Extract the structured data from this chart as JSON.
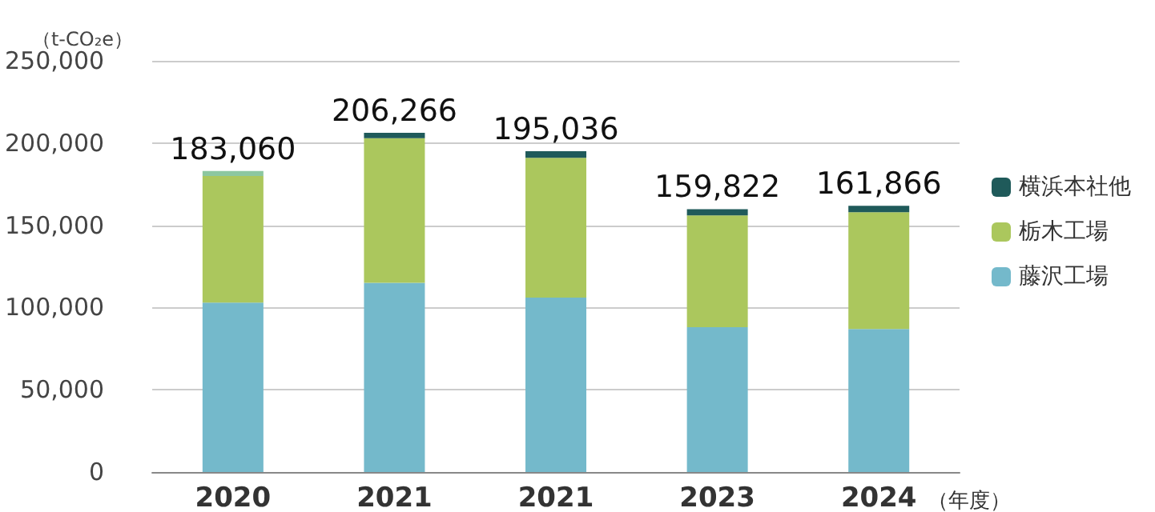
{
  "chart_data": {
    "type": "bar",
    "stacked": true,
    "ylabel": "（t-CO₂e）",
    "xlabel": "（年度）",
    "categories": [
      "2020",
      "2021",
      "2021",
      "2023",
      "2024"
    ],
    "series": [
      {
        "name": "藤沢工場",
        "color": "#74b9cb",
        "values": [
          103000,
          115000,
          106000,
          88000,
          87000
        ]
      },
      {
        "name": "栃木工場",
        "color": "#abc75d",
        "values": [
          77000,
          88000,
          85000,
          68000,
          71000
        ]
      },
      {
        "name": "横浜本社他",
        "color": "#1f5a5a",
        "colors": [
          "#8cc7a0",
          "#1f5a5a",
          "#1f5a5a",
          "#1f5a5a",
          "#1f5a5a"
        ],
        "values": [
          3060,
          3266,
          4036,
          3822,
          3866
        ]
      }
    ],
    "totals": [
      "183,060",
      "206,266",
      "195,036",
      "159,822",
      "161,866"
    ],
    "ylim": [
      0,
      250000
    ],
    "yticks": [
      0,
      {
        "value": 50000,
        "label": "50,000"
      },
      {
        "value": 100000,
        "label": "100,000"
      },
      {
        "value": 150000,
        "label": "150,000"
      },
      {
        "value": 200000,
        "label": "200,000"
      },
      {
        "value": 250000,
        "label": "250,000"
      }
    ],
    "grid": "y",
    "legend": "right"
  }
}
